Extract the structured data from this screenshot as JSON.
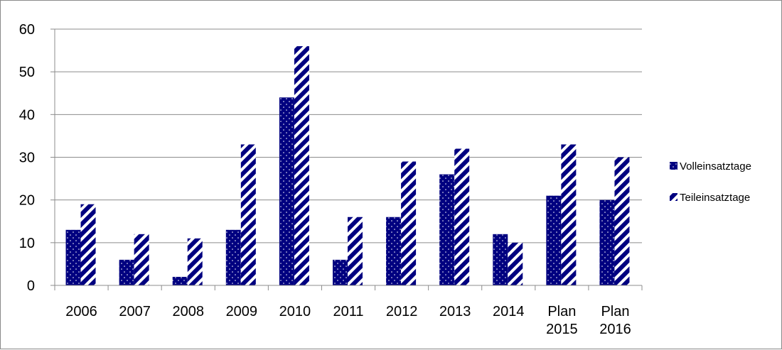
{
  "chart_data": {
    "type": "bar",
    "title": "",
    "xlabel": "",
    "ylabel": "",
    "categories": [
      [
        "2006"
      ],
      [
        "2007"
      ],
      [
        "2008"
      ],
      [
        "2009"
      ],
      [
        "2010"
      ],
      [
        "2011"
      ],
      [
        "2012"
      ],
      [
        "2013"
      ],
      [
        "2014"
      ],
      [
        "Plan",
        "2015"
      ],
      [
        "Plan",
        "2016"
      ]
    ],
    "series": [
      {
        "name": "Volleinsatztage",
        "values": [
          13,
          6,
          2,
          13,
          44,
          6,
          16,
          26,
          12,
          21,
          20
        ],
        "color": "#000080",
        "pattern": "dots"
      },
      {
        "name": "Teileinsatztage",
        "values": [
          19,
          12,
          11,
          33,
          56,
          16,
          29,
          32,
          10,
          33,
          30
        ],
        "color": "#000080",
        "pattern": "diagonal-stripes"
      }
    ],
    "ylim": [
      0,
      60
    ],
    "yticks": [
      0,
      10,
      20,
      30,
      40,
      50,
      60
    ],
    "grid": true,
    "legend_position": "right"
  }
}
